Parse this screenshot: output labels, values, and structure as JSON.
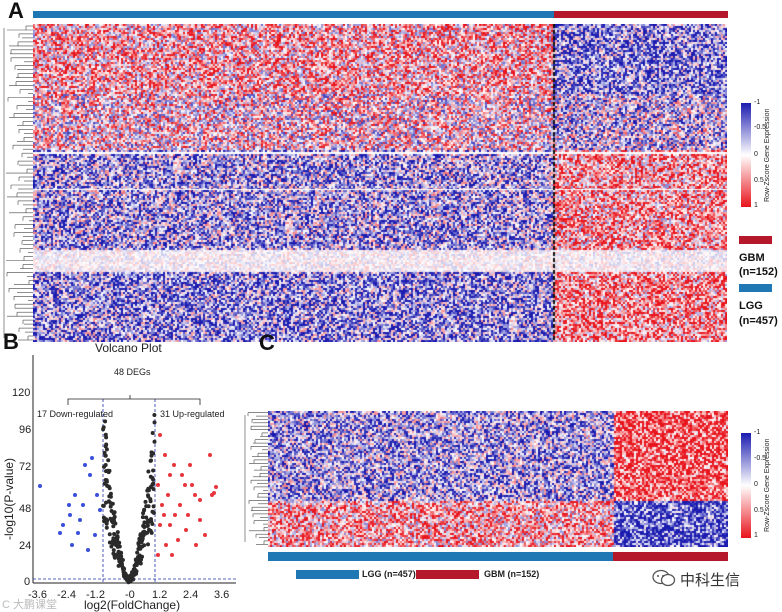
{
  "panels": {
    "a": "A",
    "b": "B",
    "c": "C"
  },
  "colors": {
    "lgg": "#1f77b4",
    "gbm": "#b5182a",
    "red": "#e8141c",
    "blue": "#1b1bb0",
    "white": "#ffffff"
  },
  "legend_a": {
    "gbm_label": "GBM",
    "gbm_n": "(n=152)",
    "lgg_label": "LGG",
    "lgg_n": "(n=457)"
  },
  "colorbar": {
    "title": "Row-Zscore Gene Expression",
    "ticks": [
      "-1",
      "-0.5",
      "0",
      "0.5",
      "1"
    ]
  },
  "legend_c": {
    "lgg": "LGG (n=457)",
    "gbm": "GBM  (n=152)"
  },
  "volcano": {
    "title": "Volcano Plot",
    "degs": "48 DEGs",
    "down": "17 Down-regulated",
    "up": "31 Up-regulated",
    "xlabel": "log2(FoldChange)",
    "ylabel": "-log10(P-value)",
    "yticks": [
      "120",
      "96",
      "72",
      "48",
      "24",
      "0"
    ],
    "xticks": [
      "-3.6",
      "-2.4",
      "-1.2",
      "-0",
      "1.2",
      "2.4",
      "3.6"
    ]
  },
  "watermark": {
    "text": "中科生信",
    "left_text": "C 大鹏课堂"
  },
  "icons": {
    "wechat": "wechat-icon"
  }
}
